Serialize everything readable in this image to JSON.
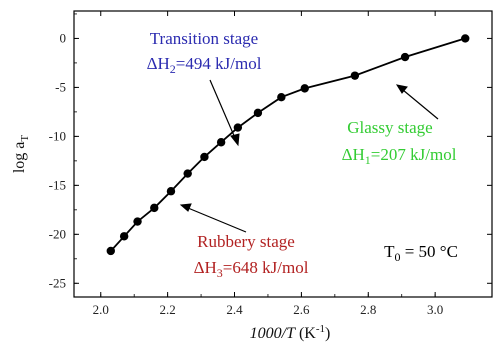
{
  "chart_data": {
    "type": "line",
    "xlabel_italic": "1000/T",
    "xlabel_unit": " (K",
    "xlabel_unit_sup": "-1",
    "xlabel_unit_close": ")",
    "ylabel_main": "log a",
    "ylabel_sub": "T",
    "xlim": [
      1.92,
      3.17
    ],
    "ylim": [
      -26.4,
      2.8
    ],
    "xticks": [
      2.0,
      2.2,
      2.4,
      2.6,
      2.8,
      3.0
    ],
    "xtick_labels": [
      "2.0",
      "2.2",
      "2.4",
      "2.6",
      "2.8",
      "3.0"
    ],
    "yticks": [
      0,
      -5,
      -10,
      -15,
      -20,
      -25
    ],
    "ytick_labels": [
      "0",
      "-5",
      "-10",
      "-15",
      "-20",
      "-25"
    ],
    "grid": false,
    "series": [
      {
        "x": [
          2.03,
          2.07,
          2.11,
          2.16,
          2.21,
          2.26,
          2.31,
          2.36,
          2.41,
          2.47,
          2.54,
          2.61,
          2.76,
          2.91,
          3.09
        ],
        "y": [
          -21.7,
          -20.2,
          -18.7,
          -17.3,
          -15.6,
          -13.8,
          -12.1,
          -10.6,
          -9.1,
          -7.6,
          -6.0,
          -5.1,
          -3.8,
          -1.9,
          0.0
        ],
        "color": "#000000"
      }
    ],
    "annotations": {
      "transition": {
        "title": "Transition stage",
        "energy_prefix": "ΔH",
        "energy_sub": "2",
        "energy_value": "=494 kJ/mol",
        "color": "#2b2bb0"
      },
      "glassy": {
        "title": "Glassy stage",
        "energy_prefix": "ΔH",
        "energy_sub": "1",
        "energy_value": "=207 kJ/mol",
        "color": "#33cc33"
      },
      "rubbery": {
        "title": "Rubbery stage",
        "energy_prefix": "ΔH",
        "energy_sub": "3",
        "energy_value": "=648 kJ/mol",
        "color": "#b22222"
      },
      "reference": {
        "prefix": "T",
        "sub": "0",
        "value": " = 50 °C",
        "color": "#000000"
      }
    }
  }
}
